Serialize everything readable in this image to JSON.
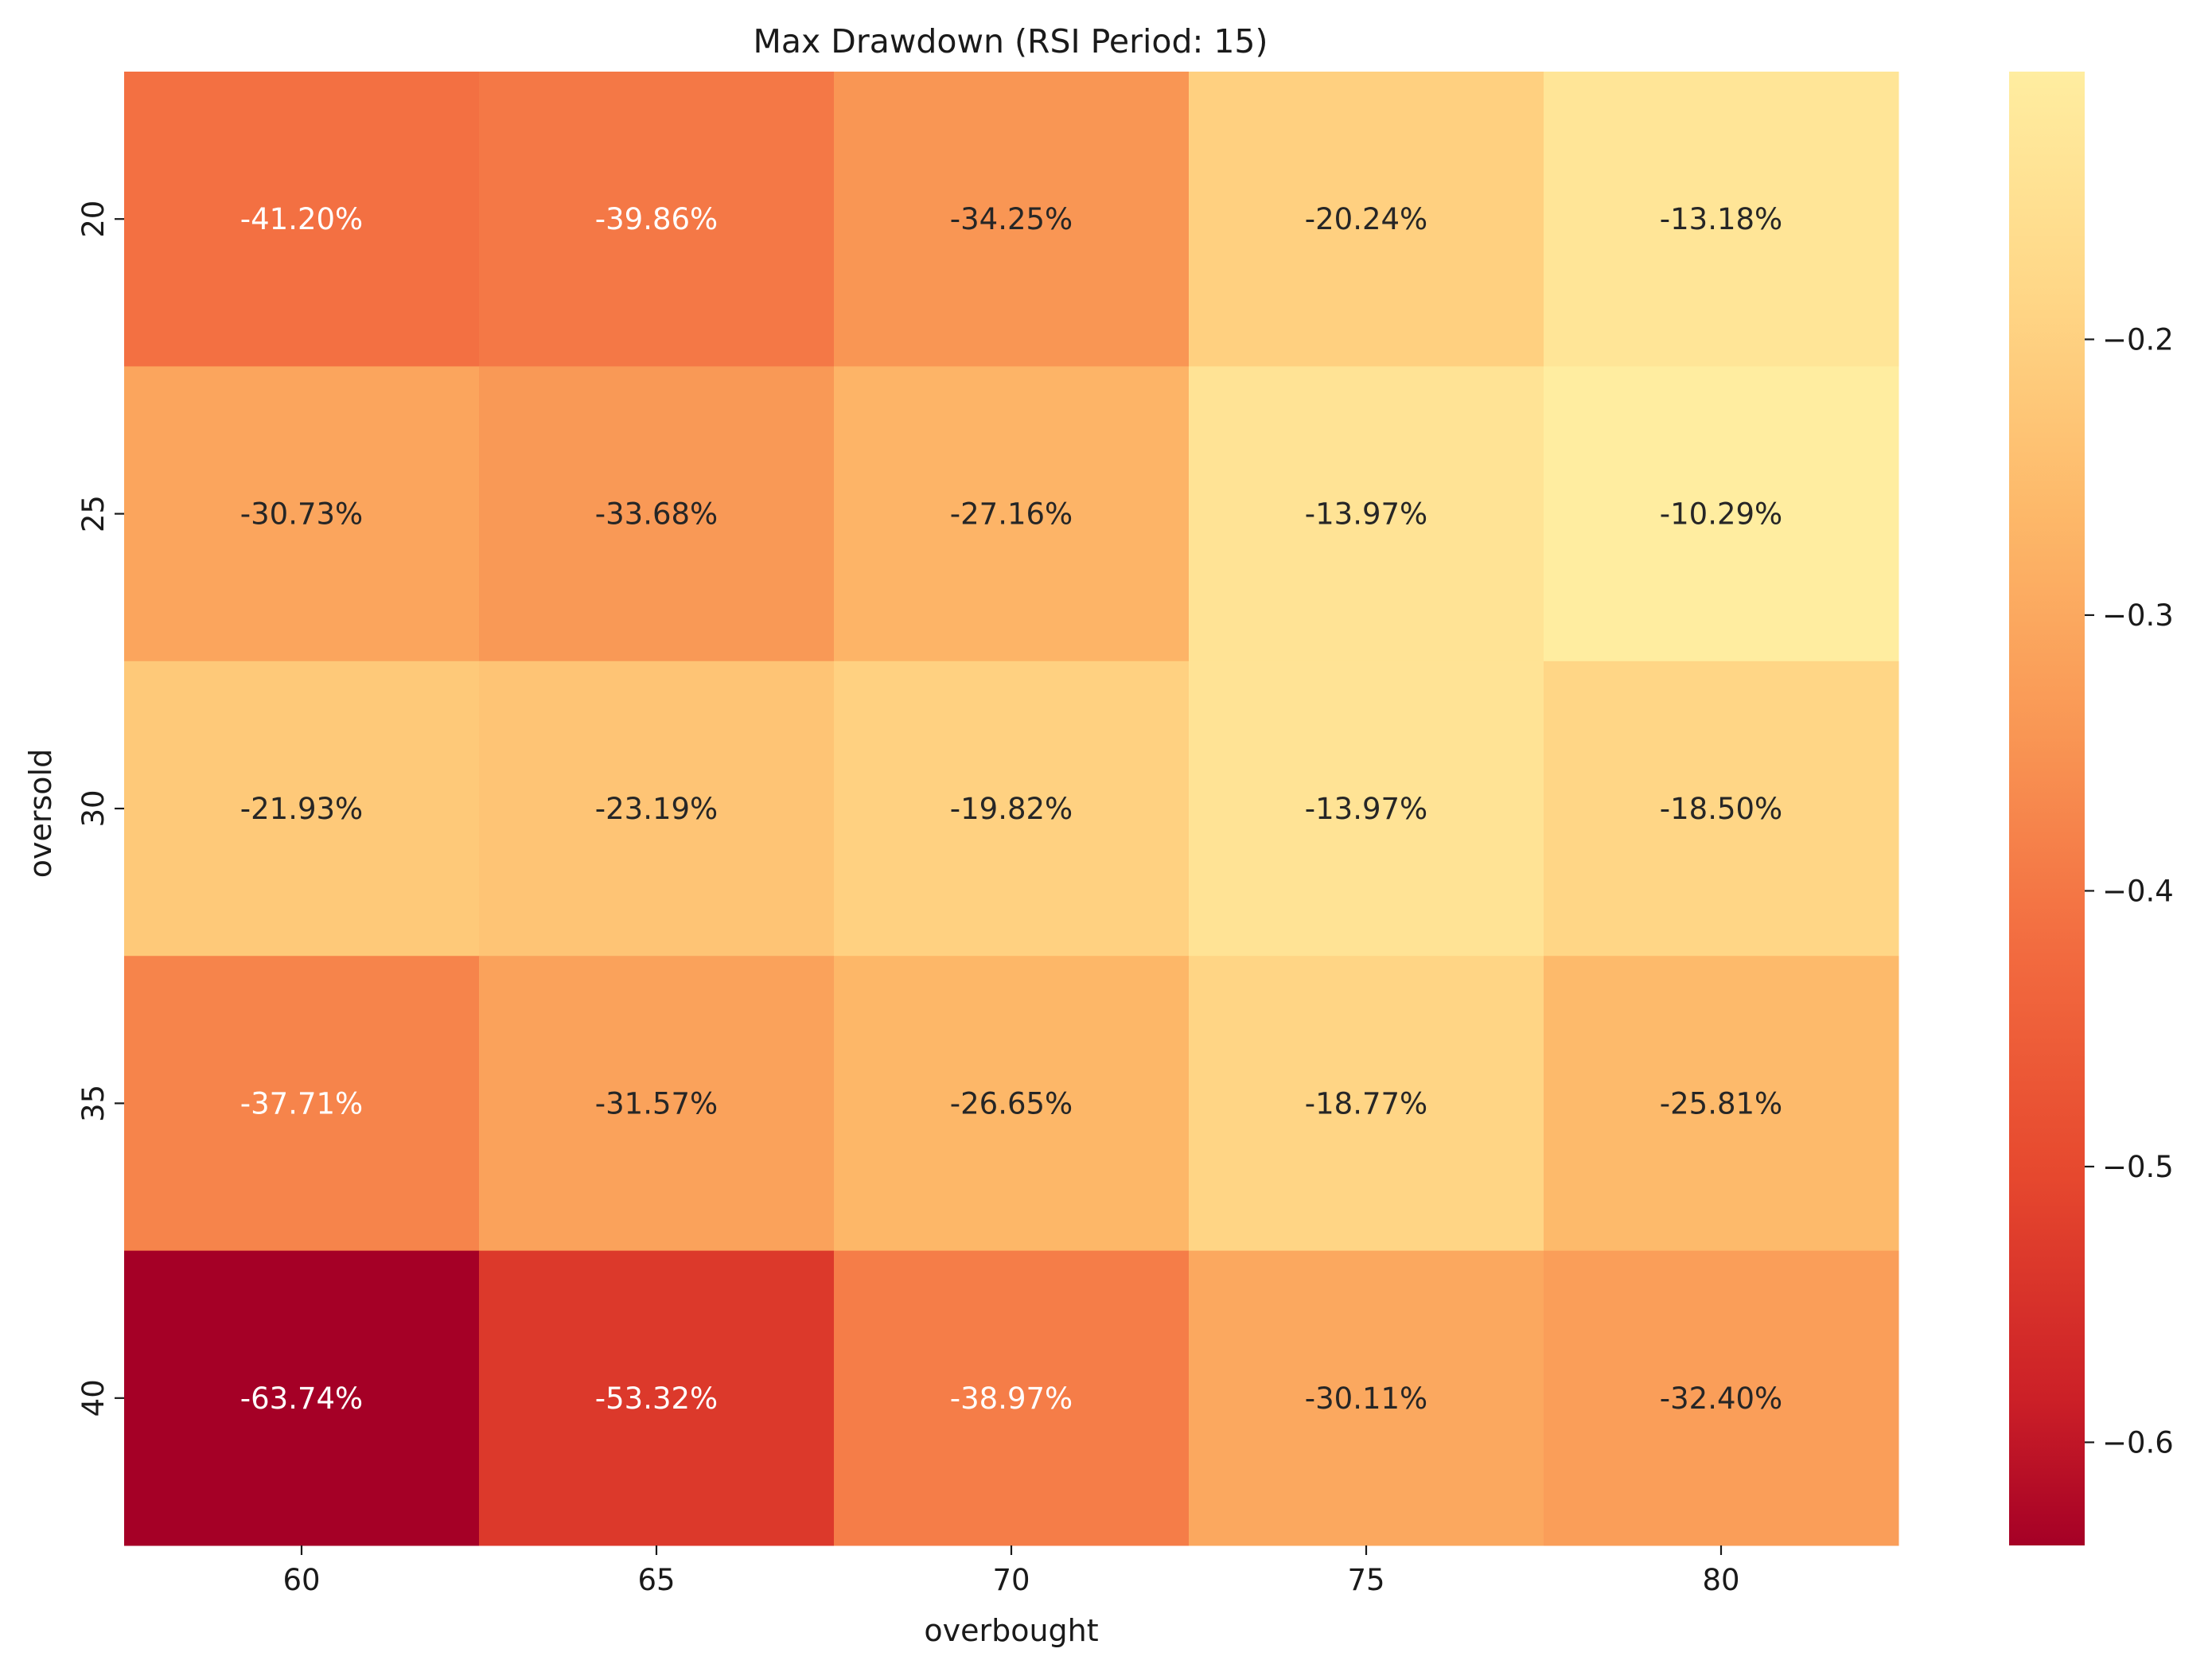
{
  "chart_data": {
    "type": "heatmap",
    "title": "Max Drawdown (RSI Period: 15)",
    "xlabel": "overbought",
    "ylabel": "oversold",
    "x_categories": [
      "60",
      "65",
      "70",
      "75",
      "80"
    ],
    "y_categories": [
      "20",
      "25",
      "30",
      "35",
      "40"
    ],
    "values": [
      [
        -0.412,
        -0.3986,
        -0.3425,
        -0.2024,
        -0.1318
      ],
      [
        -0.3073,
        -0.3368,
        -0.2716,
        -0.1397,
        -0.1029
      ],
      [
        -0.2193,
        -0.2319,
        -0.1982,
        -0.1397,
        -0.185
      ],
      [
        -0.3771,
        -0.3157,
        -0.2665,
        -0.1877,
        -0.2581
      ],
      [
        -0.6374,
        -0.5332,
        -0.3897,
        -0.3011,
        -0.324
      ]
    ],
    "annotations": [
      [
        "-41.20%",
        "-39.86%",
        "-34.25%",
        "-20.24%",
        "-13.18%"
      ],
      [
        "-30.73%",
        "-33.68%",
        "-27.16%",
        "-13.97%",
        "-10.29%"
      ],
      [
        "-21.93%",
        "-23.19%",
        "-19.82%",
        "-13.97%",
        "-18.50%"
      ],
      [
        "-37.71%",
        "-31.57%",
        "-26.65%",
        "-18.77%",
        "-25.81%"
      ],
      [
        "-63.74%",
        "-53.32%",
        "-38.97%",
        "-30.11%",
        "-32.40%"
      ]
    ],
    "colormap": "YlOrRd_r",
    "vmin": -0.6374,
    "vmax": -0.1029,
    "colorbar_ticks": [
      "−0.6",
      "−0.5",
      "−0.4",
      "−0.3",
      "−0.2"
    ],
    "colorbar_tick_values": [
      -0.6,
      -0.5,
      -0.4,
      -0.3,
      -0.2
    ],
    "grid": false
  }
}
